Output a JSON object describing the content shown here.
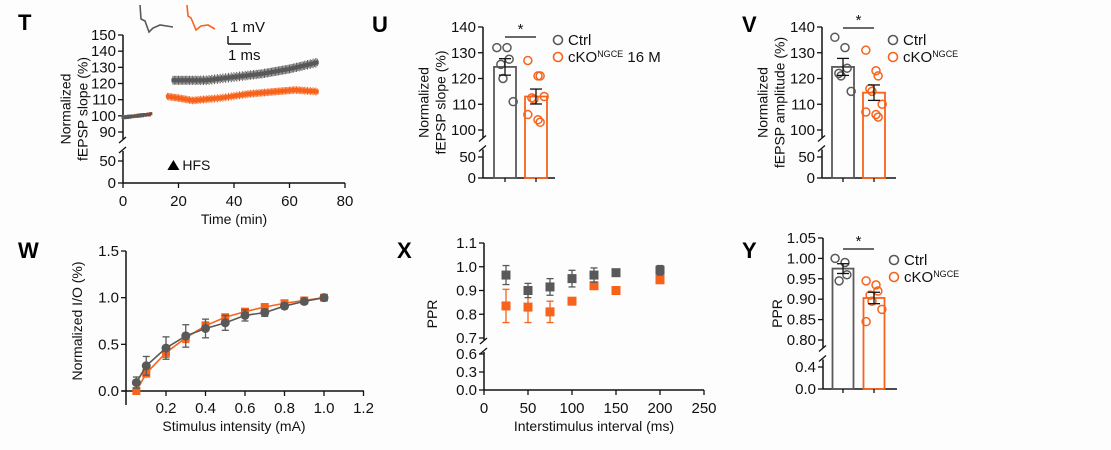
{
  "colors": {
    "ctrl": "#595959",
    "cko": "#f7631b",
    "axis": "#111111"
  },
  "chart_data": [
    {
      "panel": "T",
      "type": "line",
      "xlabel": "Time (min)",
      "ylabel": [
        "Normalized",
        "fEPSP slope (%)"
      ],
      "xlim": [
        0,
        80
      ],
      "xticks": [
        "0",
        "20",
        "40",
        "60",
        "80"
      ],
      "yticks_upper": [
        "90",
        "100",
        "110",
        "120",
        "130",
        "140",
        "150"
      ],
      "yticks_lower": [
        "0",
        "50"
      ],
      "annotation": "HFS",
      "scalebar": {
        "voltage": "1 mV",
        "time": "1 ms"
      },
      "series": [
        {
          "name": "Ctrl",
          "baseline": {
            "x": [
              0,
              10
            ],
            "y": [
              99,
              101
            ]
          },
          "post": {
            "x": [
              18,
              30,
              40,
              50,
              60,
              70
            ],
            "y": [
              122,
              122,
              124,
              126,
              129,
              133
            ]
          },
          "sem": 3
        },
        {
          "name": "cKO",
          "baseline": {
            "x": [
              0,
              10
            ],
            "y": [
              99,
              101
            ]
          },
          "post": {
            "x": [
              16,
              20,
              25,
              35,
              45,
              55,
              62,
              70
            ],
            "y": [
              112,
              111,
              109.5,
              111,
              113.5,
              115,
              116,
              115
            ]
          },
          "sem": 2.5
        }
      ]
    },
    {
      "panel": "U",
      "type": "bar",
      "ylabel": [
        "Normalized",
        "fEPSP slope (%)"
      ],
      "categories": [
        "Ctrl",
        "cKO"
      ],
      "yticks_upper": [
        "100",
        "110",
        "120",
        "130",
        "140"
      ],
      "yticks_lower": [
        "0",
        "50"
      ],
      "values": [
        124.5,
        113
      ],
      "sem": [
        3.2,
        2.9
      ],
      "points": [
        [
          132,
          132,
          127.5,
          125.5,
          120,
          111
        ],
        [
          127,
          121,
          121,
          112.5,
          112,
          113,
          106,
          104,
          103
        ]
      ],
      "significance": "*",
      "legend": {
        "ctrl": "Ctrl",
        "cko": "cKO",
        "cko_sup": "NGCE",
        "cko_suffix": " 16 M"
      }
    },
    {
      "panel": "V",
      "type": "bar",
      "ylabel": [
        "Normalized",
        "fEPSP amplitude (%)"
      ],
      "categories": [
        "Ctrl",
        "cKO"
      ],
      "yticks_upper": [
        "100",
        "110",
        "120",
        "130",
        "140"
      ],
      "yticks_lower": [
        "0",
        "50"
      ],
      "values": [
        124.5,
        114.5
      ],
      "sem": [
        3.3,
        3.0
      ],
      "points": [
        [
          136,
          132,
          124,
          122,
          121,
          115
        ],
        [
          131,
          123,
          121,
          116,
          115,
          110,
          107,
          106,
          105
        ]
      ],
      "significance": "*",
      "legend": {
        "ctrl": "Ctrl",
        "cko": "cKO",
        "cko_sup": "NGCE",
        "cko_suffix": ""
      }
    },
    {
      "panel": "W",
      "type": "line",
      "xlabel": "Stimulus intensity (mA)",
      "ylabel": [
        "Normalized I/O (%)"
      ],
      "xlim": [
        0,
        1.2
      ],
      "ylim": [
        0,
        1.5
      ],
      "xticks": [
        "0.2",
        "0.4",
        "0.6",
        "0.8",
        "1.0",
        "1.2"
      ],
      "yticks": [
        "0.0",
        "0.5",
        "1.0",
        "1.5"
      ],
      "x": [
        0.05,
        0.1,
        0.2,
        0.3,
        0.4,
        0.5,
        0.6,
        0.7,
        0.8,
        0.9,
        1.0
      ],
      "series": [
        {
          "name": "cKO",
          "values": [
            0.0,
            0.19,
            0.41,
            0.57,
            0.7,
            0.79,
            0.85,
            0.9,
            0.94,
            0.97,
            1.0
          ],
          "sem": [
            0.02,
            0.04,
            0.05,
            0.05,
            0.04,
            0.03,
            0.03,
            0.02,
            0.02,
            0.01,
            0
          ]
        },
        {
          "name": "Ctrl",
          "values": [
            0.09,
            0.27,
            0.46,
            0.59,
            0.67,
            0.73,
            0.81,
            0.84,
            0.91,
            0.96,
            1.0
          ],
          "sem": [
            0.06,
            0.1,
            0.12,
            0.12,
            0.1,
            0.08,
            0.06,
            0.04,
            0.03,
            0.02,
            0
          ]
        }
      ]
    },
    {
      "panel": "X",
      "type": "scatter",
      "xlabel": "Interstimulus interval (ms)",
      "ylabel": [
        "PPR"
      ],
      "xlim": [
        0,
        250
      ],
      "xticks": [
        "0",
        "50",
        "100",
        "150",
        "200",
        "250"
      ],
      "yticks_upper": [
        "0.7",
        "0.8",
        "0.9",
        "1.0",
        "1.1"
      ],
      "yticks_lower": [
        "0.0",
        "0.3",
        "0.6"
      ],
      "x": [
        25,
        50,
        75,
        100,
        125,
        150,
        200
      ],
      "series": [
        {
          "name": "Ctrl",
          "values": [
            0.965,
            0.9,
            0.915,
            0.95,
            0.965,
            0.975,
            0.985
          ],
          "sem": [
            0.04,
            0.03,
            0.035,
            0.035,
            0.03,
            0.005,
            0.02
          ]
        },
        {
          "name": "cKO",
          "values": [
            0.835,
            0.83,
            0.81,
            0.855,
            0.92,
            0.9,
            0.945
          ],
          "sem": [
            0.07,
            0.065,
            0.045,
            0.005,
            0.005,
            0.005,
            0.01
          ]
        }
      ]
    },
    {
      "panel": "Y",
      "type": "bar",
      "ylabel": [
        "PPR"
      ],
      "categories": [
        "Ctrl",
        "cKO"
      ],
      "yticks_upper": [
        "0.80",
        "0.85",
        "0.90",
        "0.95",
        "1.00",
        "1.05"
      ],
      "yticks_lower": [
        "0.0",
        "0.4"
      ],
      "values": [
        0.975,
        0.903
      ],
      "sem": [
        0.012,
        0.014
      ],
      "points": [
        [
          1.0,
          0.99,
          0.96,
          0.945
        ],
        [
          0.945,
          0.935,
          0.92,
          0.91,
          0.895,
          0.875,
          0.845
        ]
      ],
      "significance": "*",
      "legend": {
        "ctrl": "Ctrl",
        "cko": "cKO",
        "cko_sup": "NGCE",
        "cko_suffix": ""
      }
    }
  ]
}
